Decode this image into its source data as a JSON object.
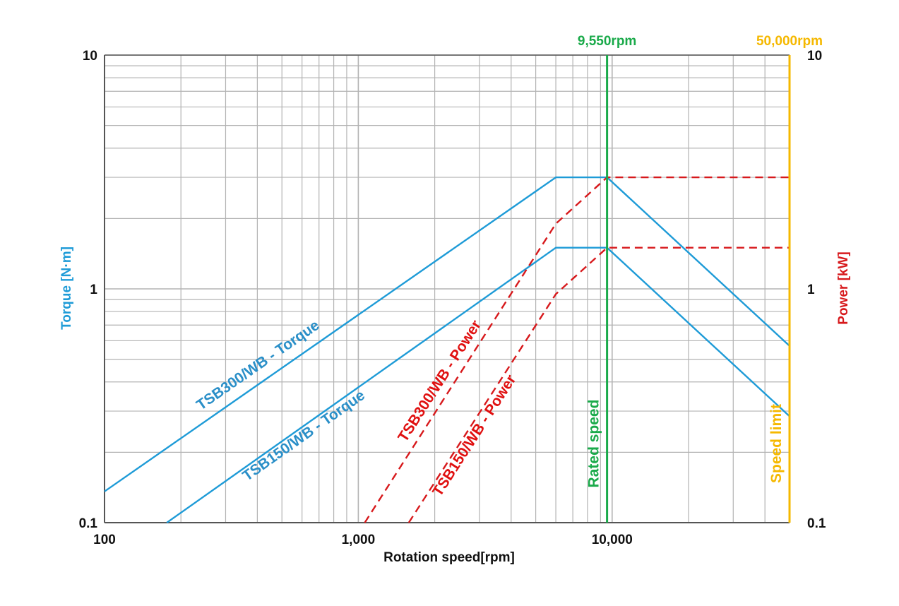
{
  "chart_data": {
    "type": "line",
    "title": "",
    "xlabel": "Rotation speed[rpm]",
    "ylabel_left": "Torque [N·m]",
    "ylabel_right": "Power [kW]",
    "x_scale": "log",
    "y_scale": "log",
    "xlim": [
      100,
      50000
    ],
    "ylim_left": [
      0.1,
      10
    ],
    "ylim_right": [
      0.1,
      10
    ],
    "grid": true,
    "x_ticks": [
      {
        "value": 100,
        "label": "100"
      },
      {
        "value": 1000,
        "label": "1,000"
      },
      {
        "value": 10000,
        "label": "10,000"
      }
    ],
    "y_left_ticks": [
      {
        "value": 0.1,
        "label": "0.1"
      },
      {
        "value": 1,
        "label": "1"
      },
      {
        "value": 10,
        "label": "10"
      }
    ],
    "y_right_ticks": [
      {
        "value": 0.1,
        "label": "0.1"
      },
      {
        "value": 1,
        "label": "1"
      },
      {
        "value": 10,
        "label": "10"
      }
    ],
    "series": [
      {
        "name": "TSB300/WB - Torque",
        "axis": "left",
        "style": "solid",
        "color": "#1e9bd7",
        "points": [
          [
            100,
            0.136
          ],
          [
            6000,
            3.0
          ],
          [
            9550,
            3.0
          ],
          [
            50000,
            0.57
          ]
        ]
      },
      {
        "name": "TSB150/WB - Torque",
        "axis": "left",
        "style": "solid",
        "color": "#1e9bd7",
        "points": [
          [
            176,
            0.1
          ],
          [
            6000,
            1.5
          ],
          [
            9550,
            1.5
          ],
          [
            50000,
            0.285
          ]
        ]
      },
      {
        "name": "TSB300/WB - Power",
        "axis": "right",
        "style": "dashed",
        "color": "#d7191c",
        "points": [
          [
            1060,
            0.1
          ],
          [
            6000,
            1.9
          ],
          [
            9550,
            3.0
          ],
          [
            50000,
            3.0
          ]
        ]
      },
      {
        "name": "TSB150/WB - Power",
        "axis": "right",
        "style": "dashed",
        "color": "#d7191c",
        "points": [
          [
            1580,
            0.1
          ],
          [
            6000,
            0.95
          ],
          [
            9550,
            1.5
          ],
          [
            50000,
            1.5
          ]
        ]
      }
    ],
    "vlines": [
      {
        "x": 9550,
        "top_label": "9,550rpm",
        "side_label": "Rated speed",
        "color": "#1aaa4a",
        "style": "solid"
      },
      {
        "x": 50000,
        "top_label": "50,000rpm",
        "side_label": "Speed limit",
        "color": "#f5b800",
        "style": "solid"
      }
    ],
    "colors": {
      "torque": "#1e9bd7",
      "power": "#d7191c",
      "rated": "#1aaa4a",
      "limit": "#f5b800",
      "grid": "#b3b3b3",
      "axis": "#555555"
    }
  }
}
